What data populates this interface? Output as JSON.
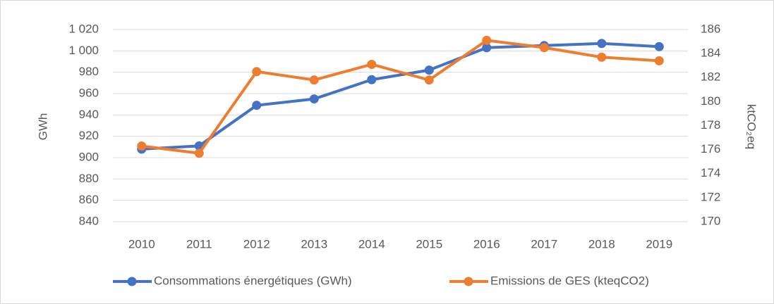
{
  "chart_data": {
    "type": "line",
    "categories": [
      "2010",
      "2011",
      "2012",
      "2013",
      "2014",
      "2015",
      "2016",
      "2017",
      "2018",
      "2019"
    ],
    "series": [
      {
        "name": "Consommations énergétiques (GWh)",
        "color": "#4472c4",
        "values": [
          908,
          911,
          949,
          955,
          973,
          982,
          1003,
          1005,
          1007,
          1004
        ]
      },
      {
        "name": "Emissions de GES (kteqCO2)",
        "color": "#ed7d31",
        "axis": "y2",
        "values": [
          176.3,
          175.7,
          182.5,
          181.8,
          183.1,
          181.8,
          185.1,
          184.5,
          183.7,
          183.4
        ]
      }
    ],
    "ylabel": "GWh",
    "y2label": "ktCO₂eq",
    "ylim": [
      840,
      1020
    ],
    "yticks": [
      840,
      860,
      880,
      900,
      920,
      940,
      960,
      980,
      {
        "value": 1000,
        "label": "1 000"
      },
      {
        "value": 1020,
        "label": "1 020"
      }
    ],
    "y2lim": [
      170,
      186
    ],
    "y2ticks": [
      170,
      172,
      174,
      176,
      178,
      180,
      182,
      184,
      186
    ],
    "grid": true,
    "legend": "bottom"
  }
}
